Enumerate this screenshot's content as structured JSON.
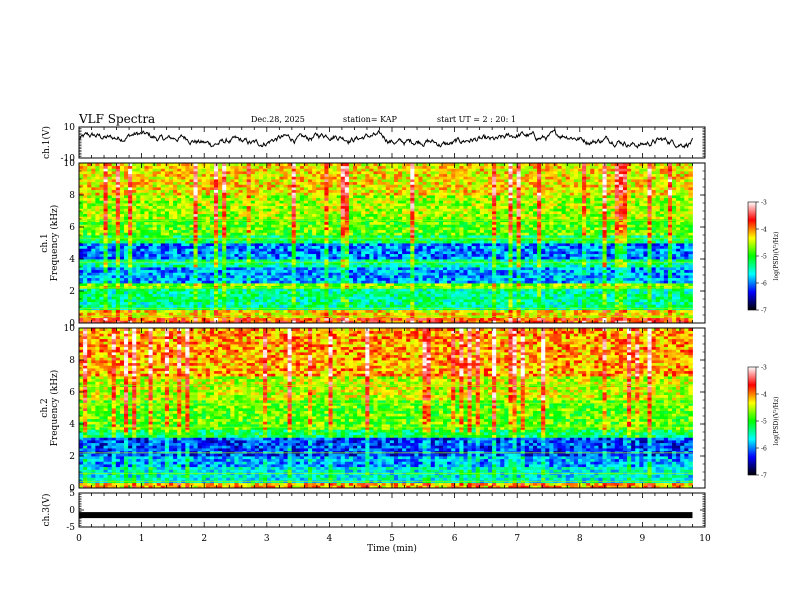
{
  "header": {
    "title": "VLF Spectra",
    "date": "Dec.28, 2025",
    "station": "station= KAP",
    "start": "start  UT =   2 : 20: 1"
  },
  "colors": {
    "background": "#ffffff",
    "axis": "#000000",
    "colormap": [
      "#000000",
      "#0000ff",
      "#00ffff",
      "#00ff00",
      "#ffff00",
      "#ff0000",
      "#ffffff"
    ]
  },
  "chart_data": [
    {
      "type": "line",
      "name": "ch1-waveform",
      "ylabel": "ch.1(V)",
      "ylim": [
        -10,
        10
      ],
      "yticks": [
        10,
        -10
      ],
      "xlim": [
        0,
        10
      ],
      "x_end_min": 9.8,
      "series_stats": {
        "mean": 2,
        "amplitude": 6
      }
    },
    {
      "type": "heatmap",
      "name": "ch1-spectrogram",
      "ylabel": "ch.1 Frequency (kHz)",
      "ylabel_lines": [
        "ch.1",
        "Frequency (kHz)"
      ],
      "ylim": [
        0,
        10
      ],
      "yticks": [
        0,
        2,
        4,
        6,
        8,
        10
      ],
      "xlim": [
        0,
        10
      ],
      "x_end_min": 9.8,
      "band_log_psd": [
        {
          "f0": 0.0,
          "f1": 0.3,
          "level": -3.8
        },
        {
          "f0": 0.3,
          "f1": 0.9,
          "level": -4.3
        },
        {
          "f0": 0.9,
          "f1": 2.1,
          "level": -5.4
        },
        {
          "f0": 2.1,
          "f1": 2.5,
          "level": -4.7
        },
        {
          "f0": 2.5,
          "f1": 3.5,
          "level": -5.9
        },
        {
          "f0": 3.5,
          "f1": 4.0,
          "level": -5.4
        },
        {
          "f0": 4.0,
          "f1": 5.0,
          "level": -6.0
        },
        {
          "f0": 5.0,
          "f1": 5.5,
          "level": -5.2
        },
        {
          "f0": 5.5,
          "f1": 6.5,
          "level": -4.8
        },
        {
          "f0": 6.5,
          "f1": 8.0,
          "level": -4.6
        },
        {
          "f0": 8.0,
          "f1": 10.0,
          "level": -4.3
        }
      ]
    },
    {
      "type": "heatmap",
      "name": "ch2-spectrogram",
      "ylabel": "ch.2 Frequency (kHz)",
      "ylabel_lines": [
        "ch.2",
        "Frequency (kHz)"
      ],
      "ylim": [
        0,
        10
      ],
      "yticks": [
        0,
        2,
        4,
        6,
        8,
        10
      ],
      "xlim": [
        0,
        10
      ],
      "x_end_min": 9.8,
      "band_log_psd": [
        {
          "f0": 0.0,
          "f1": 0.3,
          "level": -4.2
        },
        {
          "f0": 0.3,
          "f1": 1.3,
          "level": -5.6
        },
        {
          "f0": 1.3,
          "f1": 2.0,
          "level": -5.9
        },
        {
          "f0": 2.0,
          "f1": 3.2,
          "level": -6.2
        },
        {
          "f0": 3.2,
          "f1": 3.7,
          "level": -5.2
        },
        {
          "f0": 3.7,
          "f1": 5.5,
          "level": -4.8
        },
        {
          "f0": 5.5,
          "f1": 7.0,
          "level": -4.5
        },
        {
          "f0": 7.0,
          "f1": 10.0,
          "level": -4.1
        }
      ]
    },
    {
      "type": "line",
      "name": "ch3-signal",
      "ylabel": "ch.3(V)",
      "ylim": [
        -5,
        5
      ],
      "yticks": [
        5,
        0,
        -5
      ],
      "xlim": [
        0,
        10
      ],
      "x_end_min": 9.8,
      "level_v": -1.5,
      "xlabel": "Time  (min)",
      "xticks": [
        0,
        1,
        2,
        3,
        4,
        5,
        6,
        7,
        8,
        9,
        10
      ]
    }
  ],
  "colorbars": [
    {
      "name": "colorbar-ch1",
      "label": "log(PSD)(V²/Hz)",
      "range": [
        -7,
        -3
      ],
      "ticks": [
        -3,
        -4,
        -5,
        -6,
        -7
      ]
    },
    {
      "name": "colorbar-ch2",
      "label": "log(PSD)(V²/Hz)",
      "range": [
        -7,
        -3
      ],
      "ticks": [
        -3,
        -4,
        -5,
        -6,
        -7
      ]
    }
  ]
}
